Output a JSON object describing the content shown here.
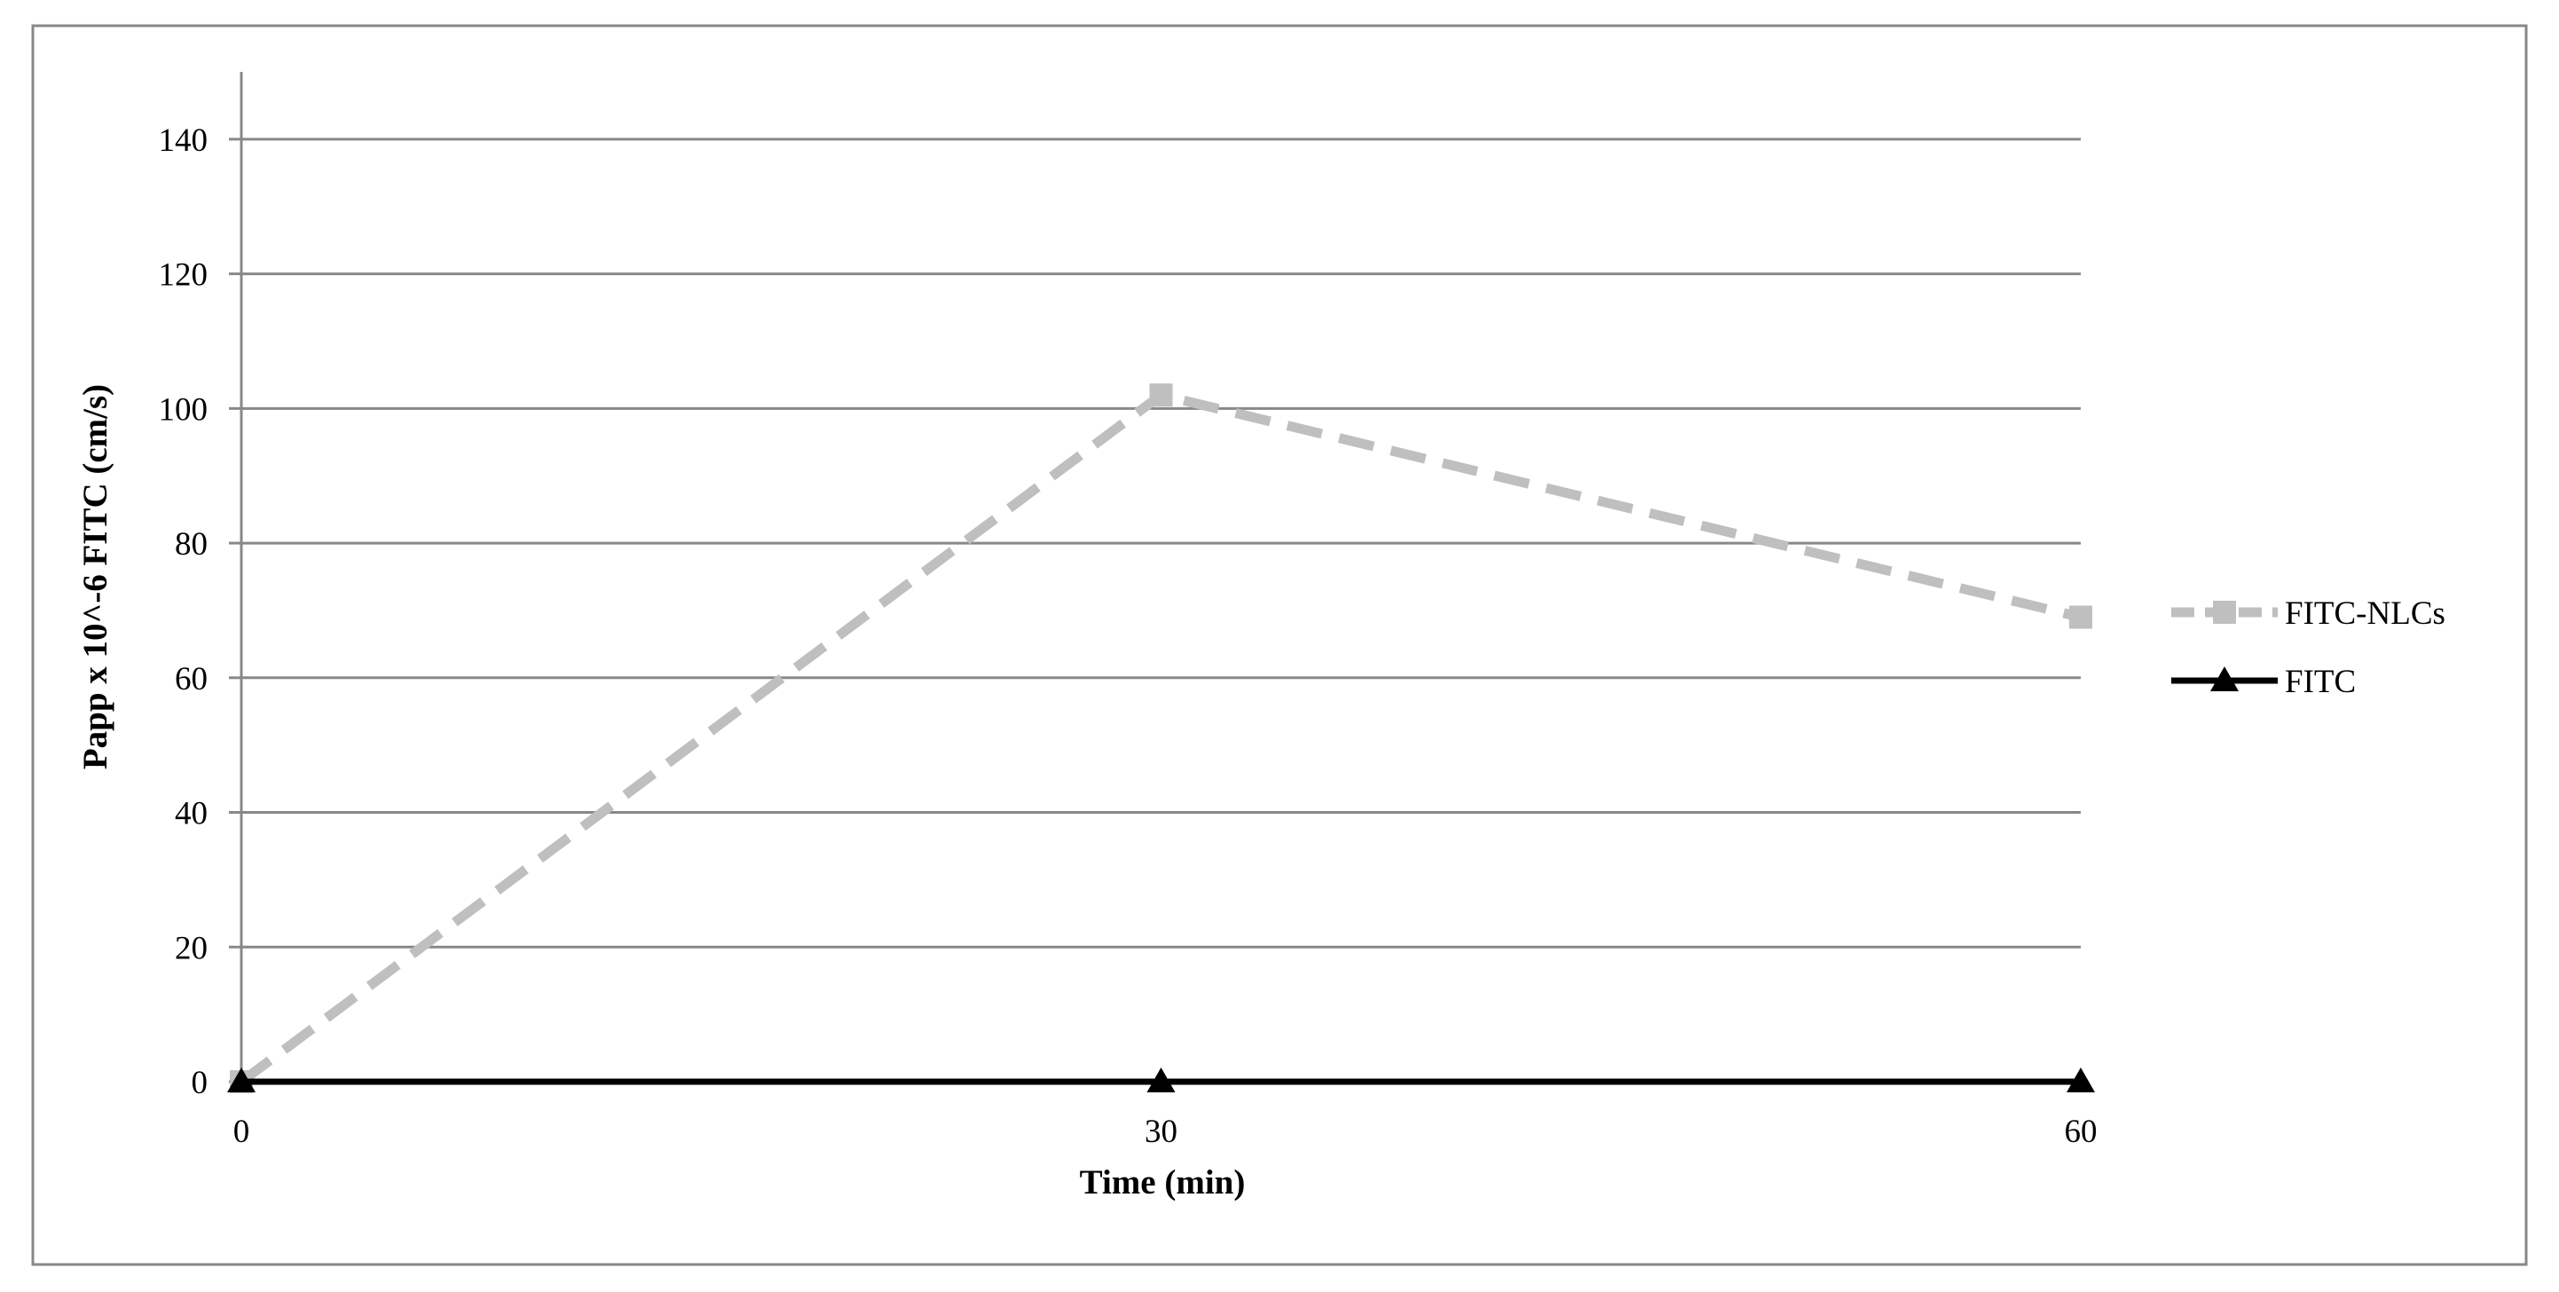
{
  "chart_data": {
    "type": "line",
    "x_label": "Time (min)",
    "y_label": "Papp x 10^-6 FITC (cm/s)",
    "x": [
      0,
      30,
      60
    ],
    "xlim": [
      0,
      60
    ],
    "xticks": [
      0,
      30,
      60
    ],
    "ylim": [
      0,
      150
    ],
    "yticks": [
      0,
      20,
      40,
      60,
      80,
      100,
      120,
      140
    ],
    "grid": true,
    "legend": "right",
    "series": [
      {
        "name": "FITC-NLCs",
        "color": "#bfbfbf",
        "line_style": "dashed",
        "marker": "square",
        "values": [
          0,
          102,
          69
        ]
      },
      {
        "name": "FITC",
        "color": "#000000",
        "line_style": "solid",
        "marker": "triangle",
        "values": [
          0,
          0,
          0
        ]
      }
    ]
  }
}
